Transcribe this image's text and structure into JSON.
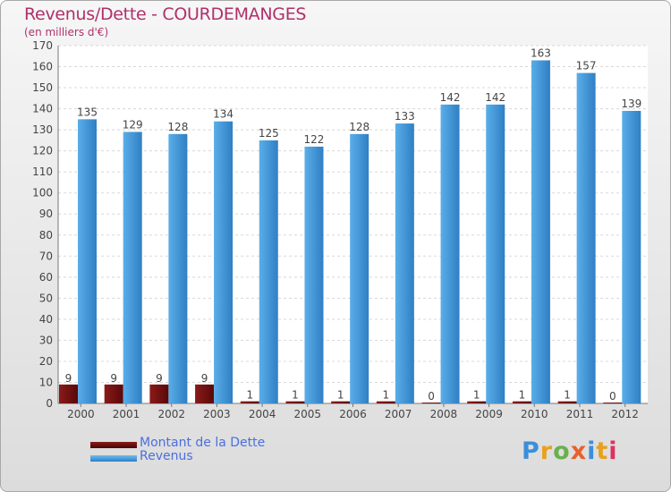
{
  "title": "Revenus/Dette - COURDEMANGES",
  "subtitle": "(en milliers d'€)",
  "legend": [
    {
      "label": "Montant de la Dette",
      "color": "#6b0d0d"
    },
    {
      "label": "Revenus",
      "color": "#4a9fe2"
    }
  ],
  "logo": "Proxiti",
  "colors": {
    "debt": "#8a1a1a",
    "debt_dark": "#5a0808",
    "revenue": "#5aaee8",
    "revenue_dark": "#2f7fc4"
  },
  "chart_data": {
    "type": "bar",
    "title": "Revenus/Dette - COURDEMANGES",
    "ylabel": "(en milliers d'€)",
    "ylim": [
      0,
      170
    ],
    "ytick_step": 10,
    "categories": [
      "2000",
      "2001",
      "2002",
      "2003",
      "2004",
      "2005",
      "2006",
      "2007",
      "2008",
      "2009",
      "2010",
      "2011",
      "2012"
    ],
    "series": [
      {
        "name": "Montant de la Dette",
        "values": [
          9,
          9,
          9,
          9,
          1,
          1,
          1,
          1,
          0,
          1,
          1,
          1,
          0
        ]
      },
      {
        "name": "Revenus",
        "values": [
          135,
          129,
          128,
          134,
          125,
          122,
          128,
          133,
          142,
          142,
          163,
          157,
          139
        ]
      }
    ],
    "grid": true,
    "legend_position": "bottom-left"
  }
}
